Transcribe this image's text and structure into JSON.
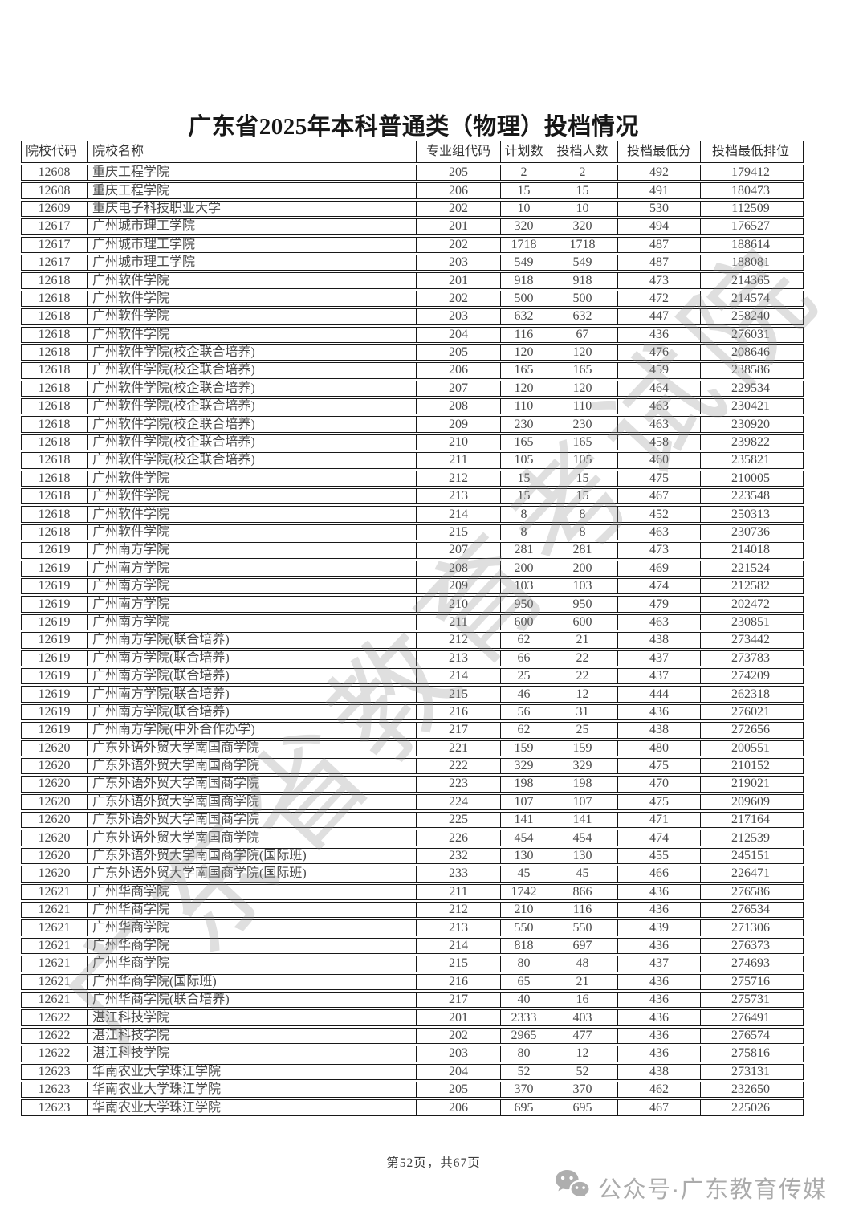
{
  "title": "广东省2025年本科普通类（物理）投档情况",
  "table": {
    "columns": [
      "院校代码",
      "院校名称",
      "专业组代码",
      "计划数",
      "投档人数",
      "投档最低分",
      "投档最低排位"
    ],
    "rows": [
      [
        "12608",
        "重庆工程学院",
        "205",
        "2",
        "2",
        "492",
        "179412"
      ],
      [
        "12608",
        "重庆工程学院",
        "206",
        "15",
        "15",
        "491",
        "180473"
      ],
      [
        "12609",
        "重庆电子科技职业大学",
        "202",
        "10",
        "10",
        "530",
        "112509"
      ],
      [
        "12617",
        "广州城市理工学院",
        "201",
        "320",
        "320",
        "494",
        "176527"
      ],
      [
        "12617",
        "广州城市理工学院",
        "202",
        "1718",
        "1718",
        "487",
        "188614"
      ],
      [
        "12617",
        "广州城市理工学院",
        "203",
        "549",
        "549",
        "487",
        "188081"
      ],
      [
        "12618",
        "广州软件学院",
        "201",
        "918",
        "918",
        "473",
        "214365"
      ],
      [
        "12618",
        "广州软件学院",
        "202",
        "500",
        "500",
        "472",
        "214574"
      ],
      [
        "12618",
        "广州软件学院",
        "203",
        "632",
        "632",
        "447",
        "258240"
      ],
      [
        "12618",
        "广州软件学院",
        "204",
        "116",
        "67",
        "436",
        "276031"
      ],
      [
        "12618",
        "广州软件学院(校企联合培养)",
        "205",
        "120",
        "120",
        "476",
        "208646"
      ],
      [
        "12618",
        "广州软件学院(校企联合培养)",
        "206",
        "165",
        "165",
        "459",
        "238586"
      ],
      [
        "12618",
        "广州软件学院(校企联合培养)",
        "207",
        "120",
        "120",
        "464",
        "229534"
      ],
      [
        "12618",
        "广州软件学院(校企联合培养)",
        "208",
        "110",
        "110",
        "463",
        "230421"
      ],
      [
        "12618",
        "广州软件学院(校企联合培养)",
        "209",
        "230",
        "230",
        "463",
        "230920"
      ],
      [
        "12618",
        "广州软件学院(校企联合培养)",
        "210",
        "165",
        "165",
        "458",
        "239822"
      ],
      [
        "12618",
        "广州软件学院(校企联合培养)",
        "211",
        "105",
        "105",
        "460",
        "235821"
      ],
      [
        "12618",
        "广州软件学院",
        "212",
        "15",
        "15",
        "475",
        "210005"
      ],
      [
        "12618",
        "广州软件学院",
        "213",
        "15",
        "15",
        "467",
        "223548"
      ],
      [
        "12618",
        "广州软件学院",
        "214",
        "8",
        "8",
        "452",
        "250313"
      ],
      [
        "12618",
        "广州软件学院",
        "215",
        "8",
        "8",
        "463",
        "230736"
      ],
      [
        "12619",
        "广州南方学院",
        "207",
        "281",
        "281",
        "473",
        "214018"
      ],
      [
        "12619",
        "广州南方学院",
        "208",
        "200",
        "200",
        "469",
        "221524"
      ],
      [
        "12619",
        "广州南方学院",
        "209",
        "103",
        "103",
        "474",
        "212582"
      ],
      [
        "12619",
        "广州南方学院",
        "210",
        "950",
        "950",
        "479",
        "202472"
      ],
      [
        "12619",
        "广州南方学院",
        "211",
        "600",
        "600",
        "463",
        "230851"
      ],
      [
        "12619",
        "广州南方学院(联合培养)",
        "212",
        "62",
        "21",
        "438",
        "273442"
      ],
      [
        "12619",
        "广州南方学院(联合培养)",
        "213",
        "66",
        "22",
        "437",
        "273783"
      ],
      [
        "12619",
        "广州南方学院(联合培养)",
        "214",
        "25",
        "22",
        "437",
        "274209"
      ],
      [
        "12619",
        "广州南方学院(联合培养)",
        "215",
        "46",
        "12",
        "444",
        "262318"
      ],
      [
        "12619",
        "广州南方学院(联合培养)",
        "216",
        "56",
        "31",
        "436",
        "276021"
      ],
      [
        "12619",
        "广州南方学院(中外合作办学)",
        "217",
        "62",
        "25",
        "438",
        "272656"
      ],
      [
        "12620",
        "广东外语外贸大学南国商学院",
        "221",
        "159",
        "159",
        "480",
        "200551"
      ],
      [
        "12620",
        "广东外语外贸大学南国商学院",
        "222",
        "329",
        "329",
        "475",
        "210152"
      ],
      [
        "12620",
        "广东外语外贸大学南国商学院",
        "223",
        "198",
        "198",
        "470",
        "219021"
      ],
      [
        "12620",
        "广东外语外贸大学南国商学院",
        "224",
        "107",
        "107",
        "475",
        "209609"
      ],
      [
        "12620",
        "广东外语外贸大学南国商学院",
        "225",
        "141",
        "141",
        "471",
        "217164"
      ],
      [
        "12620",
        "广东外语外贸大学南国商学院",
        "226",
        "454",
        "454",
        "474",
        "212539"
      ],
      [
        "12620",
        "广东外语外贸大学南国商学院(国际班)",
        "232",
        "130",
        "130",
        "455",
        "245151"
      ],
      [
        "12620",
        "广东外语外贸大学南国商学院(国际班)",
        "233",
        "45",
        "45",
        "466",
        "226471"
      ],
      [
        "12621",
        "广州华商学院",
        "211",
        "1742",
        "866",
        "436",
        "276586"
      ],
      [
        "12621",
        "广州华商学院",
        "212",
        "210",
        "116",
        "436",
        "276534"
      ],
      [
        "12621",
        "广州华商学院",
        "213",
        "550",
        "550",
        "439",
        "271306"
      ],
      [
        "12621",
        "广州华商学院",
        "214",
        "818",
        "697",
        "436",
        "276373"
      ],
      [
        "12621",
        "广州华商学院",
        "215",
        "80",
        "48",
        "437",
        "274693"
      ],
      [
        "12621",
        "广州华商学院(国际班)",
        "216",
        "65",
        "21",
        "436",
        "275716"
      ],
      [
        "12621",
        "广州华商学院(联合培养)",
        "217",
        "40",
        "16",
        "436",
        "275731"
      ],
      [
        "12622",
        "湛江科技学院",
        "201",
        "2333",
        "403",
        "436",
        "276491"
      ],
      [
        "12622",
        "湛江科技学院",
        "202",
        "2965",
        "477",
        "436",
        "276574"
      ],
      [
        "12622",
        "湛江科技学院",
        "203",
        "80",
        "12",
        "436",
        "275816"
      ],
      [
        "12623",
        "华南农业大学珠江学院",
        "204",
        "52",
        "52",
        "438",
        "273131"
      ],
      [
        "12623",
        "华南农业大学珠江学院",
        "205",
        "370",
        "370",
        "462",
        "232650"
      ],
      [
        "12623",
        "华南农业大学珠江学院",
        "206",
        "695",
        "695",
        "467",
        "225026"
      ]
    ]
  },
  "footer": {
    "page_indicator": "第52页，共67页"
  },
  "watermarks": {
    "diagonal_text": "广东省教育考试院",
    "wechat_icon": "wechat-icon",
    "wechat_account": "公众号·广东教育传媒"
  },
  "colors": {
    "table_border": "#181818",
    "text": "#4a4a4a",
    "title_text": "#171717",
    "watermark_gray": "#8e8e8e",
    "wechat_gray": "#ababab"
  }
}
